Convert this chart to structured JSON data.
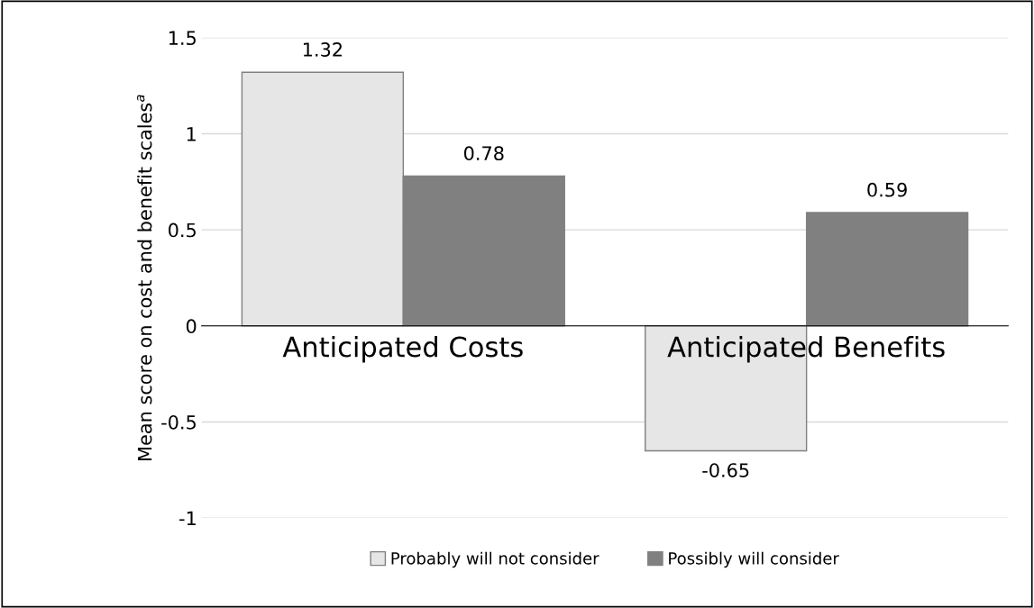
{
  "chart_data": {
    "type": "bar",
    "ylabel": "Mean score on cost and benefit scales$^{a}$",
    "categories": [
      "Anticipated Costs",
      "Anticipated Benefits"
    ],
    "series": [
      {
        "name": "Probably will not consider",
        "color": "#e7e6e6",
        "values": [
          1.32,
          -0.65
        ]
      },
      {
        "name": "Possibly will consider",
        "color": "#808080",
        "values": [
          0.78,
          0.59
        ]
      }
    ],
    "ylim": [
      -1,
      1.5
    ],
    "yticks": [
      {
        "value": -1,
        "label": "-1"
      },
      {
        "value": -0.5,
        "label": "-0.5"
      },
      0,
      0.5,
      1,
      1.5
    ],
    "grid": "y",
    "legend": "bottom",
    "data_labels": true
  }
}
